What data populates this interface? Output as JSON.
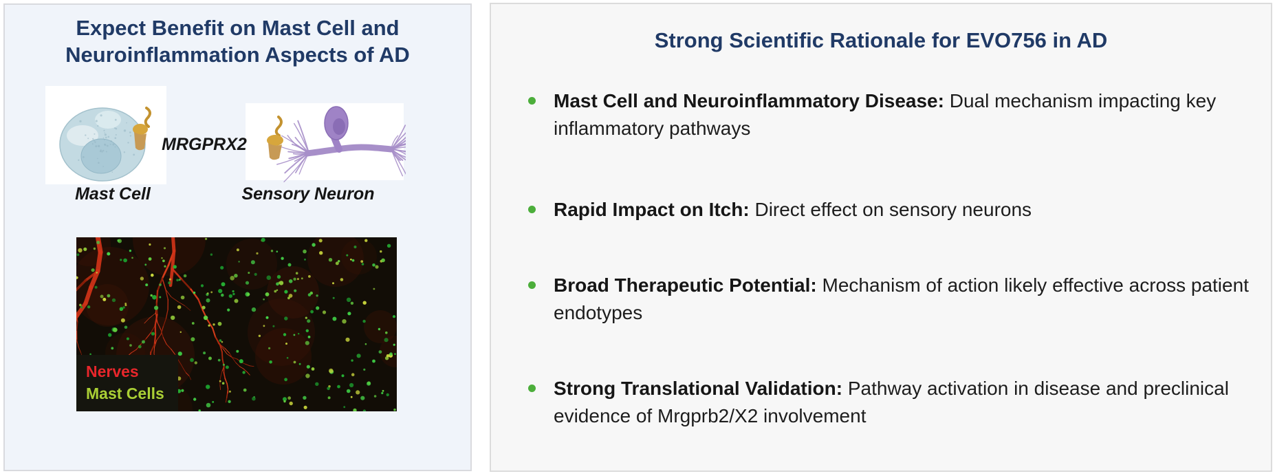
{
  "left_panel": {
    "title_line1": "Expect Benefit on Mast Cell and",
    "title_line2": "Neuroinflammation Aspects of AD",
    "title_color": "#203a66",
    "diagram": {
      "receptor_label": "MRGPRX2",
      "mast_cell_label": "Mast Cell",
      "sensory_neuron_label": "Sensory Neuron"
    },
    "micrograph": {
      "background": "#120d06",
      "nerve_color": "#d03318",
      "mast_cell_dot_color": "#3ecb44",
      "legend": [
        {
          "label": "Nerves",
          "color": "#e8262b"
        },
        {
          "label": "Mast Cells",
          "color": "#aacf35"
        }
      ]
    }
  },
  "right_panel": {
    "title": "Strong Scientific Rationale for EVO756 in AD",
    "title_color": "#203a66",
    "bullet_color": "#4cae3b",
    "bullets": [
      {
        "lead": "Mast Cell and Neuroinflammatory Disease:",
        "text": "Dual mechanism impacting key inflammatory pathways"
      },
      {
        "lead": "Rapid Impact on Itch:",
        "text": "Direct effect on sensory neurons"
      },
      {
        "lead": "Broad Therapeutic Potential:",
        "text": "Mechanism of action likely effective across patient endotypes"
      },
      {
        "lead": "Strong Translational Validation:",
        "text": "Pathway activation in disease and preclinical evidence of Mrgprb2/X2 involvement"
      }
    ]
  }
}
